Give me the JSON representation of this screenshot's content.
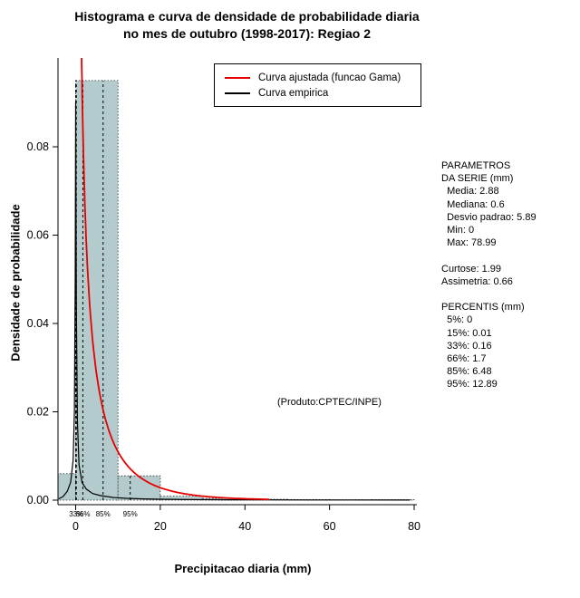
{
  "title": {
    "line1": "Histograma e curva de densidade de probabilidade diaria",
    "line2": "no mes de outubro (1998-2017): Regiao 2"
  },
  "axes": {
    "x_label": "Precipitacao diaria (mm)",
    "y_label": "Densidade de probabilidade"
  },
  "legend": {
    "items": [
      {
        "label": "Curva ajustada (funcao Gama)",
        "color": "#e60000"
      },
      {
        "label": "Curva empirica",
        "color": "#000000"
      }
    ]
  },
  "annotation": "(Produto:CPTEC/INPE)",
  "stats_panel": {
    "lines": [
      "PARAMETROS",
      "DA SERIE (mm)",
      "  Media: 2.88",
      "  Mediana: 0.6",
      "  Desvio padrao: 5.89",
      "  Min: 0",
      "  Max: 78.99",
      "",
      "Curtose: 1.99",
      "Assimetria: 0.66",
      "",
      "PERCENTIS (mm)",
      "  5%: 0",
      "  15%: 0.01",
      "  33%: 0.16",
      "  66%: 1.7",
      "  85%: 6.48",
      "  95%: 12.89"
    ]
  },
  "chart_data": {
    "type": "bar",
    "subtype": "histogram_with_density_curves",
    "title": "Histograma e curva de densidade de probabilidade diaria no mes de outubro (1998-2017): Regiao 2",
    "xlabel": "Precipitacao diaria (mm)",
    "ylabel": "Densidade de probabilidade",
    "xlim": [
      -4.2,
      83.2
    ],
    "ylim": [
      -0.001,
      0.1
    ],
    "x_ticks": [
      0,
      20,
      40,
      60,
      80
    ],
    "y_ticks": [
      0,
      0.02,
      0.04,
      0.06,
      0.08
    ],
    "y_tick_labels": [
      "0.00",
      "0.02",
      "0.04",
      "0.06",
      "0.08"
    ],
    "grid": false,
    "legend_position": "top-center-inside",
    "bar_fill": "#b4cbce",
    "bar_border": "#2b2b2b",
    "bins": [
      {
        "range": [
          -4.5,
          0
        ],
        "density": 0.006
      },
      {
        "range": [
          0,
          10
        ],
        "density": 0.095
      },
      {
        "range": [
          10,
          20
        ],
        "density": 0.0055
      },
      {
        "range": [
          20,
          30
        ],
        "density": 0.0009
      },
      {
        "range": [
          30,
          40
        ],
        "density": 0.0004
      },
      {
        "range": [
          40,
          50
        ],
        "density": 0.0002
      },
      {
        "range": [
          50,
          60
        ],
        "density": 0.00012
      },
      {
        "range": [
          60,
          70
        ],
        "density": 8e-05
      },
      {
        "range": [
          70,
          80
        ],
        "density": 0.0001
      }
    ],
    "fitted_gamma": {
      "shape": 0.239,
      "scale": 12.05,
      "x_from": 0.05,
      "x_to": 46,
      "color": "#e60000"
    },
    "empirical_curve": {
      "color": "#000000",
      "points": [
        [
          -4,
          0.0003
        ],
        [
          -3,
          0.0008
        ],
        [
          -2,
          0.002
        ],
        [
          -1.2,
          0.004
        ],
        [
          -0.6,
          0.009
        ],
        [
          -0.3,
          0.02
        ],
        [
          -0.1,
          0.05
        ],
        [
          0,
          0.09
        ],
        [
          0.15,
          0.045
        ],
        [
          0.4,
          0.018
        ],
        [
          0.8,
          0.008
        ],
        [
          1.5,
          0.004
        ],
        [
          2.5,
          0.0025
        ],
        [
          4,
          0.0015
        ],
        [
          6,
          0.001
        ],
        [
          9,
          0.0006
        ],
        [
          12,
          0.0004
        ],
        [
          16,
          0.00028
        ],
        [
          20,
          0.0002
        ],
        [
          28,
          0.00013
        ],
        [
          36,
          9e-05
        ],
        [
          45,
          7e-05
        ],
        [
          55,
          5e-05
        ],
        [
          65,
          4e-05
        ],
        [
          79,
          3e-05
        ]
      ]
    },
    "percentile_lines": [
      {
        "label": "5%",
        "x": 0,
        "top": 0.095,
        "show_label": false
      },
      {
        "label": "15%",
        "x": 0.01,
        "top": 0.095,
        "show_label": false
      },
      {
        "label": "33%",
        "x": 0.16,
        "top": 0.095,
        "show_label": true
      },
      {
        "label": "66%",
        "x": 1.7,
        "top": 0.095,
        "show_label": true
      },
      {
        "label": "85%",
        "x": 6.48,
        "top": 0.095,
        "show_label": true
      },
      {
        "label": "95%",
        "x": 12.89,
        "top": 0.0055,
        "show_label": true
      }
    ]
  }
}
